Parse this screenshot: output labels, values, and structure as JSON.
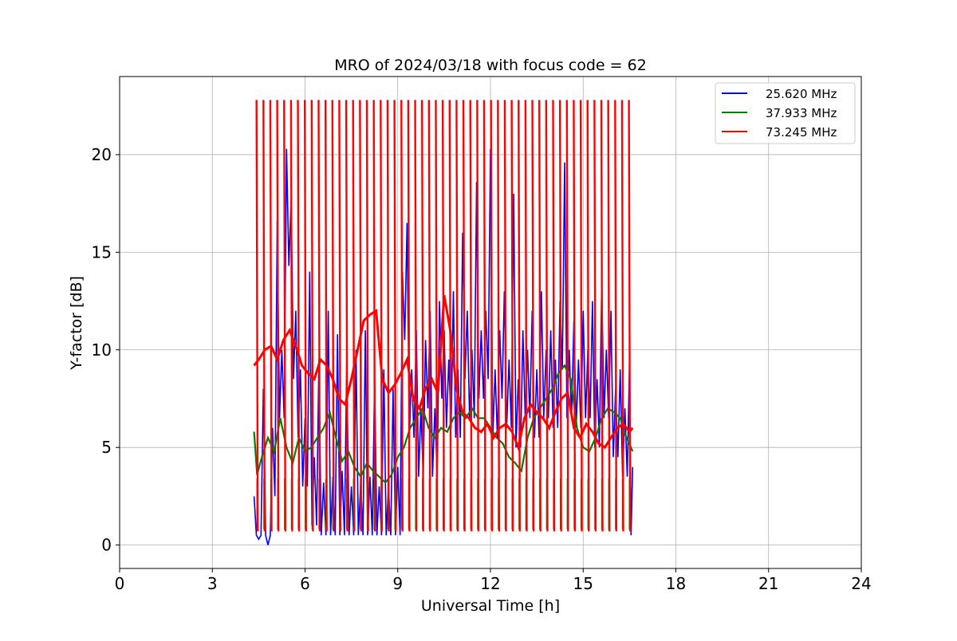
{
  "chart_data": {
    "type": "line",
    "title": "MRO of 2024/03/18 with focus code = 62",
    "xlabel": "Universal Time [h]",
    "ylabel": "Y-factor [dB]",
    "xlim": [
      0,
      24
    ],
    "ylim": [
      -1.2,
      24
    ],
    "xticks": [
      0,
      3,
      6,
      9,
      12,
      15,
      18,
      21,
      24
    ],
    "yticks": [
      0,
      5,
      10,
      15,
      20
    ],
    "grid": true,
    "legend_position": "top-right",
    "series": [
      {
        "name": "25.620 MHz",
        "color": "#0000ff",
        "x": [
          4.35,
          4.5,
          4.65,
          4.8,
          4.95,
          5.1,
          5.25,
          5.4,
          5.55,
          5.7,
          5.85,
          6.0,
          6.15,
          6.3,
          6.45,
          6.6,
          6.75,
          6.9,
          7.05,
          7.2,
          7.35,
          7.5,
          7.65,
          7.8,
          7.95,
          8.1,
          8.25,
          8.4,
          8.55,
          8.7,
          8.85,
          9.0,
          9.15,
          9.3,
          9.45,
          9.6,
          9.75,
          9.9,
          10.05,
          10.2,
          10.35,
          10.5,
          10.65,
          10.8,
          10.95,
          11.1,
          11.25,
          11.4,
          11.55,
          11.7,
          11.85,
          12.0,
          12.15,
          12.3,
          12.45,
          12.6,
          12.75,
          12.9,
          13.05,
          13.2,
          13.35,
          13.5,
          13.65,
          13.8,
          13.95,
          14.1,
          14.25,
          14.4,
          14.55,
          14.7,
          14.85,
          15.0,
          15.15,
          15.3,
          15.45,
          15.6,
          15.75,
          15.9,
          16.05,
          16.2,
          16.35,
          16.5,
          16.6
        ],
        "y": [
          2.5,
          0.3,
          8.0,
          0.0,
          6.0,
          16.6,
          10.0,
          20.3,
          17.8,
          12.0,
          9.0,
          6.5,
          14.0,
          4.5,
          9.5,
          3.2,
          12.0,
          3.5,
          10.8,
          3.8,
          9.5,
          3.0,
          10.0,
          3.2,
          11.0,
          3.5,
          8.5,
          3.0,
          9.0,
          3.0,
          8.0,
          4.0,
          14.0,
          16.5,
          9.0,
          11.0,
          7.0,
          10.5,
          12.0,
          7.0,
          12.5,
          11.0,
          9.5,
          13.0,
          9.0,
          16.0,
          12.0,
          10.0,
          18.6,
          11.0,
          12.0,
          20.3,
          9.0,
          11.0,
          13.0,
          9.5,
          18.0,
          8.5,
          11.0,
          10.0,
          12.0,
          9.0,
          13.0,
          10.0,
          11.0,
          9.5,
          12.5,
          19.6,
          10.0,
          11.5,
          9.5,
          12.0,
          10.0,
          12.5,
          8.5,
          13.5,
          10.0,
          12.0,
          8.0,
          9.0,
          7.0,
          9.5,
          4.0
        ]
      },
      {
        "name": "37.933 MHz",
        "color": "#008000",
        "x": [
          4.35,
          4.45,
          4.6,
          4.8,
          5.0,
          5.2,
          5.4,
          5.6,
          5.8,
          6.0,
          6.2,
          6.4,
          6.6,
          6.8,
          7.0,
          7.2,
          7.4,
          7.6,
          7.8,
          8.0,
          8.2,
          8.4,
          8.6,
          8.8,
          9.0,
          9.2,
          9.4,
          9.6,
          9.8,
          10.0,
          10.2,
          10.4,
          10.6,
          10.8,
          11.0,
          11.2,
          11.4,
          11.6,
          11.8,
          12.0,
          12.2,
          12.4,
          12.6,
          12.8,
          13.0,
          13.2,
          13.4,
          13.6,
          13.8,
          14.0,
          14.2,
          14.4,
          14.6,
          14.8,
          15.0,
          15.2,
          15.4,
          15.6,
          15.8,
          16.0,
          16.2,
          16.4,
          16.6
        ],
        "y": [
          5.8,
          3.6,
          4.5,
          5.5,
          4.8,
          6.5,
          5.0,
          4.2,
          5.5,
          4.8,
          5.0,
          5.5,
          6.0,
          6.8,
          5.5,
          4.3,
          4.8,
          4.0,
          3.5,
          4.2,
          3.8,
          3.5,
          3.2,
          3.6,
          4.5,
          5.0,
          6.0,
          6.5,
          7.0,
          6.0,
          5.5,
          6.0,
          5.8,
          6.5,
          6.8,
          6.5,
          7.0,
          6.5,
          6.5,
          6.0,
          5.5,
          5.2,
          4.5,
          4.2,
          3.8,
          5.5,
          6.5,
          7.0,
          7.5,
          8.0,
          8.8,
          9.2,
          8.5,
          6.0,
          5.0,
          4.8,
          5.5,
          6.5,
          7.0,
          6.8,
          6.5,
          5.5,
          4.8
        ]
      },
      {
        "name": "73.245 MHz",
        "color": "#ff0000",
        "x": [
          4.35,
          4.5,
          4.7,
          4.9,
          5.1,
          5.3,
          5.5,
          5.7,
          5.9,
          6.1,
          6.3,
          6.5,
          6.7,
          6.9,
          7.1,
          7.3,
          7.5,
          7.7,
          7.9,
          8.1,
          8.3,
          8.5,
          8.7,
          8.9,
          9.1,
          9.3,
          9.5,
          9.7,
          9.9,
          10.1,
          10.3,
          10.5,
          10.7,
          10.9,
          11.1,
          11.3,
          11.5,
          11.7,
          11.9,
          12.1,
          12.3,
          12.5,
          12.7,
          12.9,
          13.1,
          13.3,
          13.5,
          13.7,
          13.9,
          14.1,
          14.3,
          14.5,
          14.7,
          14.9,
          15.1,
          15.3,
          15.5,
          15.7,
          15.9,
          16.1,
          16.3,
          16.5,
          16.6
        ],
        "y": [
          9.2,
          9.5,
          10.0,
          10.2,
          9.5,
          10.5,
          11.0,
          10.2,
          9.2,
          8.8,
          8.5,
          9.5,
          9.2,
          8.5,
          7.5,
          7.2,
          8.5,
          10.0,
          11.5,
          11.8,
          12.0,
          8.5,
          7.8,
          8.2,
          8.8,
          9.5,
          7.5,
          7.0,
          8.0,
          8.5,
          7.8,
          12.8,
          11.0,
          8.0,
          6.8,
          6.5,
          6.0,
          5.8,
          6.2,
          5.5,
          6.0,
          6.2,
          5.8,
          5.0,
          6.5,
          7.2,
          6.8,
          6.5,
          6.0,
          6.8,
          7.5,
          7.8,
          6.0,
          5.5,
          6.2,
          5.8,
          5.2,
          5.0,
          5.5,
          6.0,
          6.2,
          5.8,
          6.0
        ]
      }
    ],
    "spikes": {
      "series": "73.245 MHz",
      "x_start": 4.45,
      "x_end": 16.5,
      "count": 55,
      "peak": 22.8,
      "trough": 0.7
    },
    "spikes_green": {
      "series": "37.933 MHz",
      "trough": 0.8,
      "top": 3.4
    }
  }
}
